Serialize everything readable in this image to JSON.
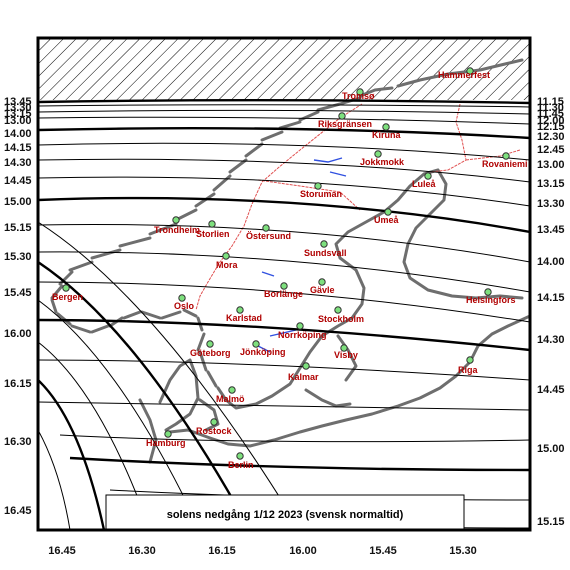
{
  "caption": "solens nedgång   1/12 2023   (svensk normaltid)",
  "colors": {
    "frame": "#000000",
    "coast": "#6e6e6e",
    "border": "#e05050",
    "lake": "#3050e0",
    "city_fill": "#7ee07e",
    "city_label": "#b00000"
  },
  "bottom_axis": [
    "16.45",
    "16.30",
    "16.15",
    "16.00",
    "15.45",
    "15.30"
  ],
  "left_axis": [
    "13.45",
    "13.30",
    "13.15",
    "13.00",
    "14.00",
    "14.15",
    "14.30",
    "14.45",
    "15.00",
    "15.15",
    "15.30",
    "15.45",
    "16.00",
    "16.15",
    "16.30",
    "16.45"
  ],
  "right_axis": [
    "11.15",
    "11.30",
    "11.45",
    "12.00",
    "12.15",
    "12.30",
    "12.45",
    "13.00",
    "13.15",
    "13.30",
    "13.45",
    "14.00",
    "14.15",
    "14.30",
    "14.45",
    "15.00",
    "15.15"
  ],
  "cities": [
    {
      "name": "Hammerfest",
      "icon": "city-marker-icon"
    },
    {
      "name": "Tromsø",
      "icon": "city-marker-icon"
    },
    {
      "name": "Riksgränsen",
      "icon": "city-marker-icon"
    },
    {
      "name": "Kiruna",
      "icon": "city-marker-icon"
    },
    {
      "name": "Jokkmokk",
      "icon": "city-marker-icon"
    },
    {
      "name": "Rovaniemi",
      "icon": "city-marker-icon"
    },
    {
      "name": "Luleå",
      "icon": "city-marker-icon"
    },
    {
      "name": "Storuman",
      "icon": "city-marker-icon"
    },
    {
      "name": "Umeå",
      "icon": "city-marker-icon"
    },
    {
      "name": "Trondheim",
      "icon": "city-marker-icon"
    },
    {
      "name": "Storlien",
      "icon": "city-marker-icon"
    },
    {
      "name": "Östersund",
      "icon": "city-marker-icon"
    },
    {
      "name": "Sundsvall",
      "icon": "city-marker-icon"
    },
    {
      "name": "Mora",
      "icon": "city-marker-icon"
    },
    {
      "name": "Bergen",
      "icon": "city-marker-icon"
    },
    {
      "name": "Oslo",
      "icon": "city-marker-icon"
    },
    {
      "name": "Borlänge",
      "icon": "city-marker-icon"
    },
    {
      "name": "Gävle",
      "icon": "city-marker-icon"
    },
    {
      "name": "Helsingfors",
      "icon": "city-marker-icon"
    },
    {
      "name": "Karlstad",
      "icon": "city-marker-icon"
    },
    {
      "name": "Stockholm",
      "icon": "city-marker-icon"
    },
    {
      "name": "Norrköping",
      "icon": "city-marker-icon"
    },
    {
      "name": "Göteborg",
      "icon": "city-marker-icon"
    },
    {
      "name": "Jönköping",
      "icon": "city-marker-icon"
    },
    {
      "name": "Visby",
      "icon": "city-marker-icon"
    },
    {
      "name": "Riga",
      "icon": "city-marker-icon"
    },
    {
      "name": "Kalmar",
      "icon": "city-marker-icon"
    },
    {
      "name": "Malmö",
      "icon": "city-marker-icon"
    },
    {
      "name": "Rostock",
      "icon": "city-marker-icon"
    },
    {
      "name": "Hamburg",
      "icon": "city-marker-icon"
    },
    {
      "name": "Berlin",
      "icon": "city-marker-icon"
    }
  ]
}
